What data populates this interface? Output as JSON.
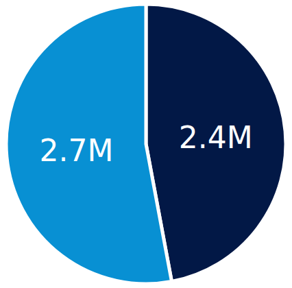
{
  "chart_data": {
    "type": "pie",
    "values": [
      2400000,
      2700000
    ],
    "value_labels": [
      "2.4M",
      "2.7M"
    ],
    "colors": [
      "#021846",
      "#0890d3"
    ],
    "data_labels": true
  }
}
